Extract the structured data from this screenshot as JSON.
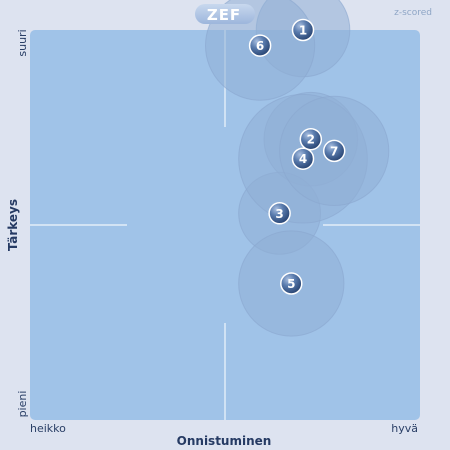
{
  "logo": {
    "text": "ZEF"
  },
  "mode_label": "z-scored",
  "chart_data": {
    "type": "scatter",
    "title": "",
    "xlabel": "Onnistuminen",
    "ylabel": "Tärkeys",
    "x_low_label": "heikko",
    "x_high_label": "hyvä",
    "y_low_label": "pieni",
    "y_high_label": "suuri",
    "xlim": [
      0,
      100
    ],
    "ylim": [
      0,
      100
    ],
    "grid": false,
    "points": [
      {
        "label": "1",
        "x": 70,
        "y": 100,
        "spread": 12
      },
      {
        "label": "2",
        "x": 72,
        "y": 72,
        "spread": 12
      },
      {
        "label": "3",
        "x": 64,
        "y": 53,
        "spread": 10.5
      },
      {
        "label": "4",
        "x": 70,
        "y": 67,
        "spread": 16.5
      },
      {
        "label": "5",
        "x": 67,
        "y": 35,
        "spread": 13.5
      },
      {
        "label": "6",
        "x": 59,
        "y": 96,
        "spread": 14
      },
      {
        "label": "7",
        "x": 78,
        "y": 69,
        "spread": 14
      }
    ]
  }
}
